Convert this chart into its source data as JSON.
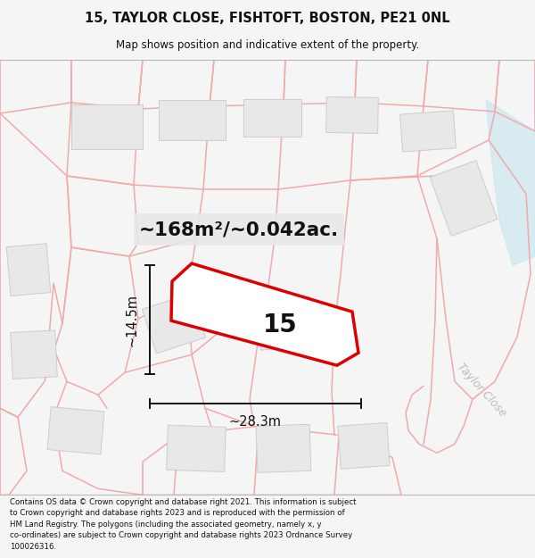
{
  "title_line1": "15, TAYLOR CLOSE, FISHTOFT, BOSTON, PE21 0NL",
  "title_line2": "Map shows position and indicative extent of the property.",
  "area_text": "~168m²/~0.042ac.",
  "width_text": "~28.3m",
  "height_text": "~14.5m",
  "property_number": "15",
  "taylor_close_text": "Taylor Close",
  "footer_lines": [
    "Contains OS data © Crown copyright and database right 2021. This information is subject",
    "to Crown copyright and database rights 2023 and is reproduced with the permission of",
    "HM Land Registry. The polygons (including the associated geometry, namely x, y",
    "co-ordinates) are subject to Crown copyright and database rights 2023 Ordnance Survey",
    "100026316."
  ],
  "bg_color": "#f5f5f5",
  "map_bg": "#ffffff",
  "road_color": "#f0aaaa",
  "road_lw": 1.1,
  "building_face": "#e8e8e8",
  "building_edge": "#cccccc",
  "plot_fill": "#ffffff",
  "plot_edge": "#dd0000",
  "plot_lw": 2.5,
  "water_color": "#cce8f0",
  "dim_color": "#111111",
  "text_color": "#111111",
  "area_box_color": "#e8e8e8",
  "taylor_color": "#bbbbbb",
  "sep_color": "#bbbbbb"
}
